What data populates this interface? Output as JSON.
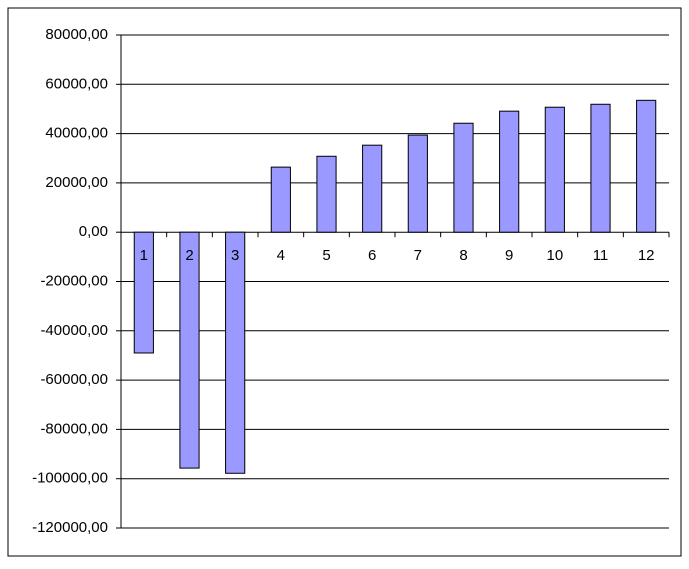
{
  "chart_data": {
    "type": "bar",
    "categories": [
      "1",
      "2",
      "3",
      "4",
      "5",
      "6",
      "7",
      "8",
      "9",
      "10",
      "11",
      "12"
    ],
    "values": [
      -49000,
      -95700,
      -97800,
      26400,
      30800,
      35300,
      39400,
      44200,
      49100,
      50700,
      51900,
      53500
    ],
    "color": "#9999ff",
    "ylim": [
      -120000,
      80000
    ],
    "yticks": [
      {
        "value": -120000,
        "label": "-120000,00"
      },
      {
        "value": -100000,
        "label": "-100000,00"
      },
      {
        "value": -80000,
        "label": "-80000,00"
      },
      {
        "value": -60000,
        "label": "-60000,00"
      },
      {
        "value": -40000,
        "label": "-40000,00"
      },
      {
        "value": -20000,
        "label": "-20000,00"
      },
      {
        "value": 0,
        "label": "0,00"
      },
      {
        "value": 20000,
        "label": "20000,00"
      },
      {
        "value": 40000,
        "label": "40000,00"
      },
      {
        "value": 60000,
        "label": "60000,00"
      },
      {
        "value": 80000,
        "label": "80000,00"
      }
    ],
    "grid": true
  }
}
